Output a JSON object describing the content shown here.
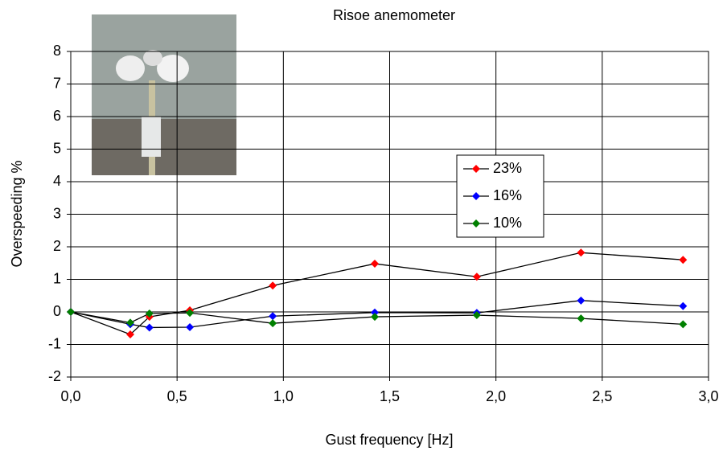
{
  "chart_data": {
    "type": "line",
    "title": "Risoe anemometer",
    "x_label": "Gust frequency [Hz]",
    "y_label": "Overspeeding %",
    "x": [
      0,
      0.28,
      0.37,
      0.56,
      0.95,
      1.43,
      1.91,
      2.4,
      2.88
    ],
    "series": [
      {
        "name": "23%",
        "color": "#ff0000",
        "values": [
          0,
          -0.69,
          -0.15,
          0.05,
          0.81,
          1.48,
          1.08,
          1.82,
          1.6
        ]
      },
      {
        "name": "16%",
        "color": "#0000ff",
        "values": [
          0,
          -0.38,
          -0.48,
          -0.47,
          -0.13,
          -0.02,
          -0.03,
          0.35,
          0.18
        ]
      },
      {
        "name": "10%",
        "color": "#008000",
        "values": [
          0,
          -0.33,
          -0.05,
          -0.03,
          -0.35,
          -0.15,
          -0.1,
          -0.2,
          -0.38
        ]
      }
    ],
    "line_color": "#000000",
    "xlim": [
      0,
      3
    ],
    "xticks": [
      {
        "value": 0,
        "label": "0,0"
      },
      {
        "value": 0.5,
        "label": "0,5"
      },
      {
        "value": 1,
        "label": "1,0"
      },
      {
        "value": 1.5,
        "label": "1,5"
      },
      {
        "value": 2,
        "label": "2,0"
      },
      {
        "value": 2.5,
        "label": "2,5"
      },
      {
        "value": 3,
        "label": "3,0"
      }
    ],
    "ylim": [
      -2,
      8
    ],
    "yticks": [
      -2,
      -1,
      0,
      1,
      2,
      3,
      4,
      5,
      6,
      7,
      8
    ],
    "grid": true,
    "legend": "center-right"
  }
}
